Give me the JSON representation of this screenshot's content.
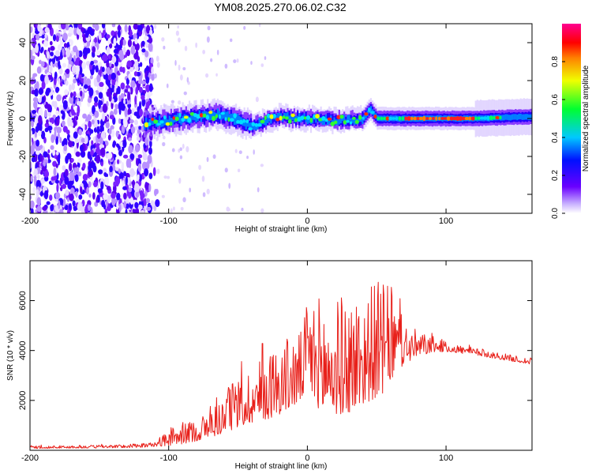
{
  "figure_title": "YM08.2025.270.06.02.C32",
  "chart_data": [
    {
      "type": "heatmap",
      "title": "YM08.2025.270.06.02.C32",
      "xlabel": "Height of straight line (km)",
      "ylabel": "Frequency (Hz)",
      "xlim": [
        -200,
        162
      ],
      "ylim": [
        -50,
        50
      ],
      "xticks": [
        -200,
        -100,
        0,
        100
      ],
      "yticks": [
        -40,
        -20,
        0,
        20,
        40
      ],
      "colorbar": {
        "label": "Normalized spectral amplitude",
        "range": [
          0,
          1
        ],
        "ticks": [
          "0.0",
          "0.2",
          "0.4",
          "0.6",
          "0.8"
        ],
        "colormap": "rainbow (violet-blue-cyan-green-yellow-red-magenta)"
      },
      "features": {
        "noise_region_x": [
          -200,
          -112
        ],
        "signal_center_trace": {
          "x": [
            -120,
            -100,
            -80,
            -65,
            -50,
            -40,
            -30,
            -20,
            -10,
            0,
            20,
            40,
            45,
            50,
            70,
            100,
            120,
            162
          ],
          "y": [
            -3,
            -1,
            1,
            2,
            -1,
            -4,
            -1,
            1,
            0,
            0,
            -1,
            0,
            5,
            0,
            0,
            0,
            0,
            1
          ]
        }
      }
    },
    {
      "type": "line",
      "xlabel": "Height of straight line (km)",
      "ylabel": "SNR (10 * v/v)",
      "xlim": [
        -200,
        162
      ],
      "ylim": [
        0,
        7600
      ],
      "xticks": [
        -200,
        -100,
        0,
        100
      ],
      "yticks": [
        2000,
        4000,
        6000
      ],
      "series": [
        {
          "name": "SNR",
          "color": "#e8201a",
          "envelope": {
            "x": [
              -200,
              -150,
              -120,
              -110,
              -100,
              -90,
              -80,
              -70,
              -60,
              -50,
              -40,
              -30,
              -20,
              -10,
              -5,
              0,
              5,
              10,
              20,
              30,
              40,
              50,
              55,
              60,
              70,
              80,
              90,
              100,
              120,
              140,
              162
            ],
            "base": [
              100,
              120,
              150,
              200,
              350,
              450,
              600,
              800,
              1100,
              1400,
              1700,
              1900,
              2200,
              2500,
              2600,
              3500,
              3000,
              2700,
              2600,
              2700,
              3000,
              3300,
              3400,
              3700,
              3900,
              4000,
              4100,
              4050,
              3900,
              3700,
              3500
            ],
            "amp": [
              80,
              90,
              100,
              150,
              500,
              600,
              700,
              900,
              1200,
              1500,
              1800,
              2100,
              2300,
              2300,
              2200,
              2600,
              3300,
              3600,
              3600,
              3700,
              3600,
              3600,
              3500,
              2800,
              1300,
              800,
              500,
              300,
              220,
              200,
              180
            ]
          }
        }
      ]
    }
  ],
  "colors": {
    "line": "#e8201a"
  }
}
